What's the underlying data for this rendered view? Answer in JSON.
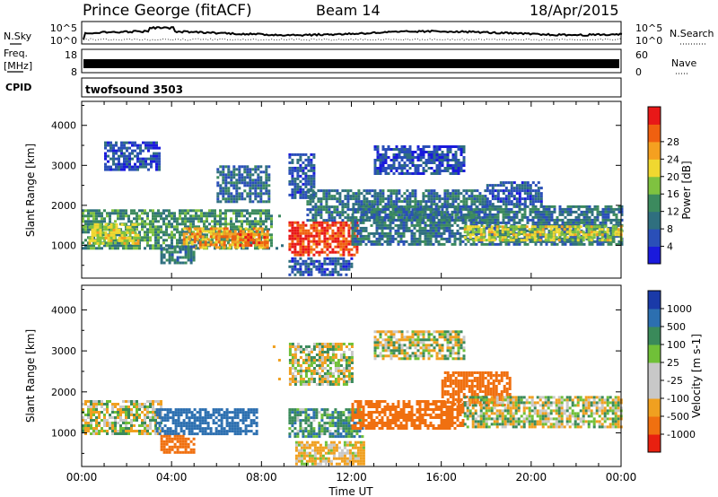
{
  "header": {
    "station": "Prince George (fitACF)",
    "beam": "Beam 14",
    "date": "18/Apr/2015"
  },
  "strips": {
    "nsky_label": "N.Sky",
    "nsky_top": "10^5",
    "nsky_bottom": "10^0",
    "nsearch_label": "N.Search",
    "nsearch_top": "10^5",
    "nsearch_bottom": "10^0",
    "freq_label_1": "Freq.",
    "freq_label_2": "[MHz]",
    "freq_top": "18",
    "freq_bottom": "8",
    "nave_label": "Nave",
    "nave_top": "60",
    "nave_bottom": "0",
    "cpid_label": "CPID",
    "cpid_value": "twofsound 3503"
  },
  "chart_data": [
    {
      "type": "heatmap",
      "ylabel": "Slant Range [km]",
      "xlabel": "Time UT",
      "x_ticks": [
        "00:00",
        "04:00",
        "08:00",
        "12:00",
        "16:00",
        "20:00",
        "00:00"
      ],
      "y_ticks": [
        1000,
        2000,
        3000,
        4000
      ],
      "ylim": [
        180,
        4600
      ],
      "colorbar": {
        "label": "Power [dB]",
        "ticks": [
          4,
          8,
          12,
          16,
          20,
          24,
          28
        ],
        "colors": [
          "#1a1adc",
          "#2a4fb8",
          "#2f6f7f",
          "#3c8a5e",
          "#7fc240",
          "#f0d830",
          "#f5a020",
          "#f06010",
          "#e81818"
        ]
      },
      "blobs": [
        {
          "t0": 0.0,
          "t1": 9.0,
          "r0": 900,
          "r1": 1900,
          "v": 12
        },
        {
          "t0": 0.3,
          "t1": 2.5,
          "r0": 1050,
          "r1": 1550,
          "v": 18
        },
        {
          "t0": 4.5,
          "t1": 8.3,
          "r0": 950,
          "r1": 1450,
          "v": 22
        },
        {
          "t0": 7.0,
          "t1": 8.3,
          "r0": 1000,
          "r1": 1300,
          "v": 27
        },
        {
          "t0": 9.2,
          "t1": 12.3,
          "r0": 750,
          "r1": 1600,
          "v": 28
        },
        {
          "t0": 10.0,
          "t1": 18.0,
          "r0": 1600,
          "r1": 2400,
          "v": 9
        },
        {
          "t0": 12.0,
          "t1": 24.0,
          "r0": 1000,
          "r1": 2000,
          "v": 9
        },
        {
          "t0": 17.0,
          "t1": 24.0,
          "r0": 1150,
          "r1": 1500,
          "v": 18
        },
        {
          "t0": 1.0,
          "t1": 3.5,
          "r0": 2900,
          "r1": 3600,
          "v": 5
        },
        {
          "t0": 6.0,
          "t1": 8.3,
          "r0": 2100,
          "r1": 3000,
          "v": 8
        },
        {
          "t0": 9.2,
          "t1": 10.3,
          "r0": 2200,
          "r1": 3300,
          "v": 6
        },
        {
          "t0": 13.0,
          "t1": 17.0,
          "r0": 2800,
          "r1": 3500,
          "v": 5
        },
        {
          "t0": 18.0,
          "t1": 20.5,
          "r0": 2000,
          "r1": 2600,
          "v": 6
        },
        {
          "t0": 3.5,
          "t1": 5.0,
          "r0": 550,
          "r1": 1000,
          "v": 10
        },
        {
          "t0": 9.2,
          "t1": 12.0,
          "r0": 250,
          "r1": 700,
          "v": 6
        }
      ]
    },
    {
      "type": "heatmap",
      "ylabel": "Slant Range [km]",
      "xlabel": "Time UT",
      "x_ticks": [
        "00:00",
        "04:00",
        "08:00",
        "12:00",
        "16:00",
        "20:00",
        "00:00"
      ],
      "y_ticks": [
        1000,
        2000,
        3000,
        4000
      ],
      "ylim": [
        180,
        4600
      ],
      "colorbar": {
        "label": "Velocity [m s-1]",
        "ticks": [
          "1000",
          "500",
          "100",
          "25",
          "-25",
          "-100",
          "-500",
          "-1000"
        ],
        "colors": [
          "#1a3aa8",
          "#2c6fb0",
          "#3a8a5a",
          "#70c038",
          "#c8c8c8",
          "#c8c8c8",
          "#f0a020",
          "#f07010",
          "#e82010"
        ]
      },
      "blobs": [
        {
          "t0": 0.0,
          "t1": 3.5,
          "r0": 1000,
          "r1": 1800,
          "v": 0
        },
        {
          "t0": 3.3,
          "t1": 7.8,
          "r0": 1000,
          "r1": 1600,
          "v": 250
        },
        {
          "t0": 3.5,
          "t1": 5.0,
          "r0": 550,
          "r1": 950,
          "v": -300
        },
        {
          "t0": 9.2,
          "t1": 12.5,
          "r0": 900,
          "r1": 1600,
          "v": 80
        },
        {
          "t0": 12.0,
          "t1": 17.0,
          "r0": 1100,
          "r1": 1800,
          "v": -400
        },
        {
          "t0": 16.0,
          "t1": 19.0,
          "r0": 1700,
          "r1": 2500,
          "v": -400
        },
        {
          "t0": 17.0,
          "t1": 24.0,
          "r0": 1150,
          "r1": 1900,
          "v": 0
        },
        {
          "t0": 8.5,
          "t1": 12.0,
          "r0": 2200,
          "r1": 3200,
          "v": 0
        },
        {
          "t0": 13.0,
          "t1": 17.0,
          "r0": 2800,
          "r1": 3500,
          "v": 0
        },
        {
          "t0": 9.5,
          "t1": 12.5,
          "r0": 250,
          "r1": 800,
          "v": -50
        }
      ]
    }
  ]
}
